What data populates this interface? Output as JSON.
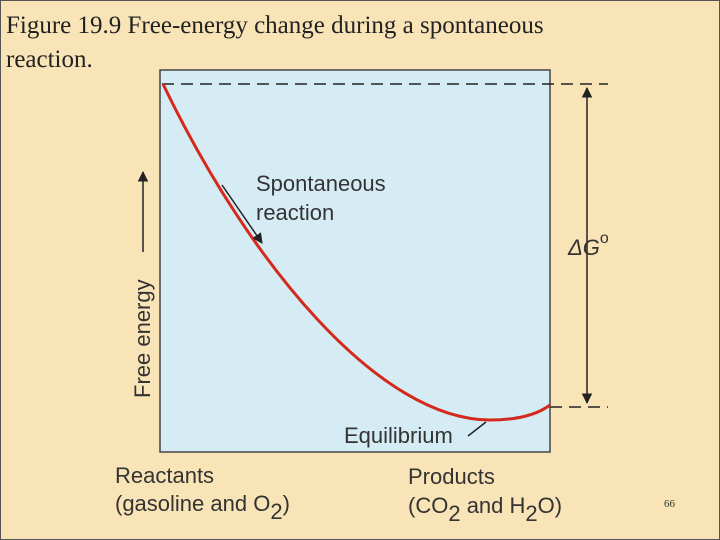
{
  "header": {
    "title_line1": "Figure 19.9   Free-energy change during a spontaneous",
    "title_line2": "reaction."
  },
  "diagram": {
    "y_axis_label": "Free energy",
    "curve_label": [
      "Spontaneous",
      "reaction"
    ],
    "delta_g": [
      "ΔG",
      "o"
    ],
    "minimum_label": "Equilibrium",
    "reactants": {
      "line1": "Reactants",
      "line2": [
        "(gasoline and O",
        "2",
        ")"
      ]
    },
    "products": {
      "line1": "Products",
      "line2": [
        "(CO",
        "2",
        " and H",
        "2",
        "O)"
      ]
    }
  },
  "footer": {
    "page_number": "66"
  }
}
